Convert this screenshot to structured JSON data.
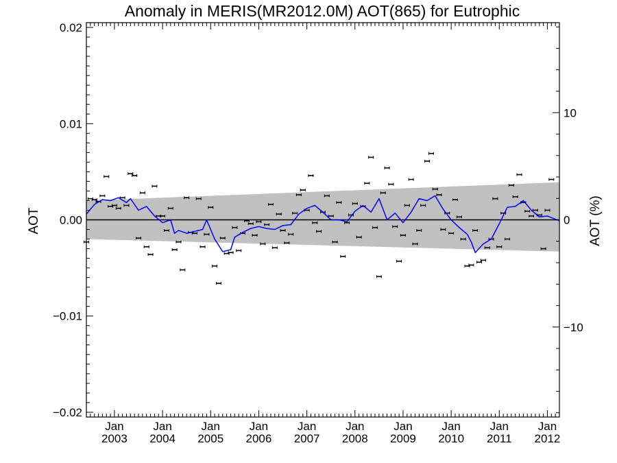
{
  "chart_data": {
    "type": "line",
    "title": "Anomaly in MERIS(MR2012.0M) AOT(865) for Eutrophic",
    "ylabel": "AOT",
    "ylabel_right": "AOT (%)",
    "xlim": [
      "2002-06",
      "2012-04"
    ],
    "ylim": [
      -0.0205,
      0.0205
    ],
    "y2lim": [
      -18.4,
      18.4
    ],
    "yticks": [
      {
        "value": -0.02,
        "label": "−0.02"
      },
      {
        "value": -0.01,
        "label": "−0.01"
      },
      {
        "value": 0.0,
        "label": "0.00"
      },
      {
        "value": 0.01,
        "label": "0.01"
      },
      {
        "value": 0.02,
        "label": "0.02"
      }
    ],
    "y2ticks": [
      {
        "value": -10,
        "label": "−10"
      },
      {
        "value": 0,
        "label": "0"
      },
      {
        "value": 10,
        "label": "10"
      }
    ],
    "xticks": [
      {
        "date": "2003-01",
        "month": "Jan",
        "year": "2003"
      },
      {
        "date": "2004-01",
        "month": "Jan",
        "year": "2004"
      },
      {
        "date": "2005-01",
        "month": "Jan",
        "year": "2005"
      },
      {
        "date": "2006-01",
        "month": "Jan",
        "year": "2006"
      },
      {
        "date": "2007-01",
        "month": "Jan",
        "year": "2007"
      },
      {
        "date": "2008-01",
        "month": "Jan",
        "year": "2008"
      },
      {
        "date": "2009-01",
        "month": "Jan",
        "year": "2009"
      },
      {
        "date": "2010-01",
        "month": "Jan",
        "year": "2010"
      },
      {
        "date": "2011-01",
        "month": "Jan",
        "year": "2011"
      },
      {
        "date": "2012-01",
        "month": "Jan",
        "year": "2012"
      }
    ],
    "band": {
      "start": {
        "date": "2002-06",
        "lower": -0.002,
        "upper": 0.002
      },
      "end": {
        "date": "2012-04",
        "lower": -0.0033,
        "upper": 0.0039
      }
    },
    "zero_line": 0.0,
    "points": [
      [
        "2002-06",
        -0.0023
      ],
      [
        "2002-07",
        0.0022
      ],
      [
        "2002-08",
        0.0021
      ],
      [
        "2002-09",
        0.0019
      ],
      [
        "2002-10",
        0.0025
      ],
      [
        "2002-11",
        0.0045
      ],
      [
        "2002-12",
        0.0014
      ],
      [
        "2003-01",
        0.0015
      ],
      [
        "2003-02",
        0.0012
      ],
      [
        "2003-03",
        0.0023
      ],
      [
        "2003-04",
        0.0015
      ],
      [
        "2003-05",
        0.0048
      ],
      [
        "2003-06",
        0.0046
      ],
      [
        "2003-07",
        -0.0019
      ],
      [
        "2003-08",
        0.0028
      ],
      [
        "2003-09",
        -0.0028
      ],
      [
        "2003-10",
        -0.0036
      ],
      [
        "2003-11",
        0.0035
      ],
      [
        "2003-12",
        0.0004
      ],
      [
        "2004-01",
        0.0004
      ],
      [
        "2004-02",
        -0.0011
      ],
      [
        "2004-03",
        0.0012
      ],
      [
        "2004-04",
        -0.0031
      ],
      [
        "2004-05",
        -0.0023
      ],
      [
        "2004-06",
        -0.0052
      ],
      [
        "2004-07",
        0.0023
      ],
      [
        "2004-08",
        -0.0013
      ],
      [
        "2004-09",
        -0.0014
      ],
      [
        "2004-10",
        0.0022
      ],
      [
        "2004-11",
        -0.0028
      ],
      [
        "2004-12",
        -0.0015
      ],
      [
        "2005-01",
        0.0013
      ],
      [
        "2005-02",
        -0.0048
      ],
      [
        "2005-03",
        -0.0066
      ],
      [
        "2005-04",
        -0.0019
      ],
      [
        "2005-05",
        -0.0035
      ],
      [
        "2005-06",
        -0.0034
      ],
      [
        "2005-07",
        -0.0008
      ],
      [
        "2005-08",
        -0.0032
      ],
      [
        "2005-09",
        -0.0014
      ],
      [
        "2005-10",
        -0.0001
      ],
      [
        "2005-11",
        -0.0004
      ],
      [
        "2005-12",
        -0.0016
      ],
      [
        "2006-01",
        -0.0002
      ],
      [
        "2006-02",
        -0.0025
      ],
      [
        "2006-03",
        -0.0005
      ],
      [
        "2006-04",
        0.0016
      ],
      [
        "2006-05",
        -0.0029
      ],
      [
        "2006-06",
        0.0006
      ],
      [
        "2006-07",
        -0.0011
      ],
      [
        "2006-08",
        -0.0024
      ],
      [
        "2006-09",
        -0.0015
      ],
      [
        "2006-10",
        0.0007
      ],
      [
        "2006-11",
        0.0026
      ],
      [
        "2006-12",
        0.0031
      ],
      [
        "2007-01",
        0.001
      ],
      [
        "2007-02",
        0.0046
      ],
      [
        "2007-03",
        -0.0003
      ],
      [
        "2007-04",
        -0.0012
      ],
      [
        "2007-05",
        0.0008
      ],
      [
        "2007-06",
        0.0025
      ],
      [
        "2007-07",
        0.0004
      ],
      [
        "2007-08",
        -0.0023
      ],
      [
        "2007-09",
        0.0018
      ],
      [
        "2007-10",
        -0.0038
      ],
      [
        "2007-11",
        -0.0003
      ],
      [
        "2007-12",
        0.0005
      ],
      [
        "2008-01",
        0.0017
      ],
      [
        "2008-02",
        -0.0018
      ],
      [
        "2008-03",
        0.0014
      ],
      [
        "2008-04",
        0.0038
      ],
      [
        "2008-05",
        0.0065
      ],
      [
        "2008-06",
        -0.0008
      ],
      [
        "2008-07",
        -0.0059
      ],
      [
        "2008-08",
        0.0028
      ],
      [
        "2008-09",
        0.0054
      ],
      [
        "2008-10",
        0.0037
      ],
      [
        "2008-11",
        -0.0007
      ],
      [
        "2008-12",
        -0.0043
      ],
      [
        "2009-01",
        -0.0016
      ],
      [
        "2009-02",
        0.0015
      ],
      [
        "2009-03",
        0.0042
      ],
      [
        "2009-04",
        -0.0025
      ],
      [
        "2009-05",
        -0.0011
      ],
      [
        "2009-06",
        0.0015
      ],
      [
        "2009-07",
        0.0061
      ],
      [
        "2009-08",
        0.0069
      ],
      [
        "2009-09",
        0.0032
      ],
      [
        "2009-10",
        0.0026
      ],
      [
        "2009-11",
        -0.001
      ],
      [
        "2009-12",
        0.0007
      ],
      [
        "2010-01",
        -0.0014
      ],
      [
        "2010-02",
        0.0021
      ],
      [
        "2010-03",
        0.0003
      ],
      [
        "2010-04",
        -0.002
      ],
      [
        "2010-05",
        -0.0048
      ],
      [
        "2010-06",
        -0.0047
      ],
      [
        "2010-07",
        -0.0011
      ],
      [
        "2010-08",
        -0.0044
      ],
      [
        "2010-09",
        -0.0042
      ],
      [
        "2010-10",
        -0.0029
      ],
      [
        "2010-11",
        -0.002
      ],
      [
        "2010-12",
        0.0022
      ],
      [
        "2011-01",
        -0.0028
      ],
      [
        "2011-02",
        0.0007
      ],
      [
        "2011-03",
        -0.002
      ],
      [
        "2011-04",
        0.0036
      ],
      [
        "2011-05",
        0.0024
      ],
      [
        "2011-06",
        0.0047
      ],
      [
        "2011-07",
        0.0018
      ],
      [
        "2011-08",
        0.0009
      ],
      [
        "2011-09",
        0.0004
      ],
      [
        "2011-10",
        0.001
      ],
      [
        "2011-11",
        0.0005
      ],
      [
        "2011-12",
        -0.003
      ],
      [
        "2012-01",
        0.001
      ],
      [
        "2012-02",
        0.0042
      ]
    ],
    "series": [
      {
        "values": [
          [
            "2002-06",
            0.0006
          ],
          [
            "2002-08",
            0.0016
          ],
          [
            "2002-10",
            0.0021
          ],
          [
            "2002-12",
            0.002
          ],
          [
            "2003-02",
            0.0023
          ],
          [
            "2003-04",
            0.0018
          ],
          [
            "2003-05",
            0.0022
          ],
          [
            "2003-07",
            0.001
          ],
          [
            "2003-09",
            0.0014
          ],
          [
            "2003-11",
            0.0004
          ],
          [
            "2004-01",
            -0.0003
          ],
          [
            "2004-03",
            0.0
          ],
          [
            "2004-04",
            -0.0014
          ],
          [
            "2004-05",
            -0.0011
          ],
          [
            "2004-07",
            -0.0014
          ],
          [
            "2004-09",
            -0.0012
          ],
          [
            "2004-11",
            -0.001
          ],
          [
            "2004-12",
            0.0
          ],
          [
            "2005-02",
            -0.002
          ],
          [
            "2005-04",
            -0.0033
          ],
          [
            "2005-06",
            -0.0031
          ],
          [
            "2005-07",
            -0.0018
          ],
          [
            "2005-09",
            -0.0013
          ],
          [
            "2005-11",
            -0.0009
          ],
          [
            "2006-01",
            -0.0007
          ],
          [
            "2006-03",
            -0.0009
          ],
          [
            "2006-05",
            -0.001
          ],
          [
            "2006-07",
            -0.0006
          ],
          [
            "2006-09",
            -0.0005
          ],
          [
            "2006-11",
            0.0006
          ],
          [
            "2007-01",
            0.0012
          ],
          [
            "2007-03",
            0.0015
          ],
          [
            "2007-05",
            0.0008
          ],
          [
            "2007-07",
            0.0
          ],
          [
            "2007-09",
            0.0
          ],
          [
            "2007-11",
            -0.0002
          ],
          [
            "2008-01",
            0.0009
          ],
          [
            "2008-03",
            0.0015
          ],
          [
            "2008-05",
            0.0008
          ],
          [
            "2008-07",
            0.0022
          ],
          [
            "2008-09",
            0.0
          ],
          [
            "2008-11",
            0.0007
          ],
          [
            "2009-01",
            -0.0003
          ],
          [
            "2009-03",
            0.0008
          ],
          [
            "2009-05",
            0.0022
          ],
          [
            "2009-07",
            0.002
          ],
          [
            "2009-09",
            0.0025
          ],
          [
            "2009-11",
            0.0011
          ],
          [
            "2010-01",
            0.0
          ],
          [
            "2010-03",
            -0.0008
          ],
          [
            "2010-05",
            -0.0015
          ],
          [
            "2010-06",
            -0.0023
          ],
          [
            "2010-07",
            -0.0034
          ],
          [
            "2010-09",
            -0.0025
          ],
          [
            "2010-11",
            -0.002
          ],
          [
            "2011-01",
            -0.0004
          ],
          [
            "2011-03",
            0.0013
          ],
          [
            "2011-05",
            0.0014
          ],
          [
            "2011-07",
            0.002
          ],
          [
            "2011-09",
            0.001
          ],
          [
            "2011-11",
            0.0003
          ],
          [
            "2012-01",
            0.0004
          ],
          [
            "2012-04",
            -0.0001
          ]
        ]
      }
    ],
    "colors": {
      "band": "#c0c0c0",
      "series_line": "#0000ff",
      "points": "#000000",
      "axes": "#000000",
      "background": "#ffffff"
    },
    "grid": false
  }
}
